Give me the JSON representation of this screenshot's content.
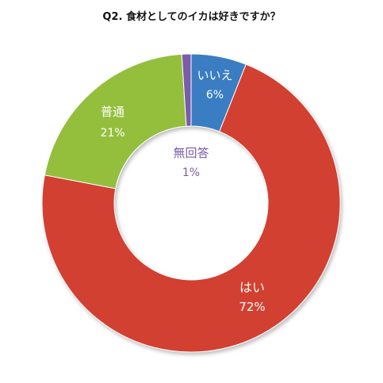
{
  "chart_data": {
    "type": "pie",
    "title": "Q2.  食材としてのイカは好きですか？",
    "style": "donut",
    "slices": [
      {
        "label": "いいえ",
        "value": 6,
        "display": "6%",
        "color": "#3a7dc2",
        "label_color": "#ffffff"
      },
      {
        "label": "はい",
        "value": 72,
        "display": "72%",
        "color": "#d24030",
        "label_color": "#ffffff"
      },
      {
        "label": "普通",
        "value": 21,
        "display": "21%",
        "color": "#93bf3e",
        "label_color": "#ffffff"
      },
      {
        "label": "無回答",
        "value": 1,
        "display": "1%",
        "color": "#7a5ca8",
        "label_color": "#7a5ca8"
      }
    ]
  }
}
